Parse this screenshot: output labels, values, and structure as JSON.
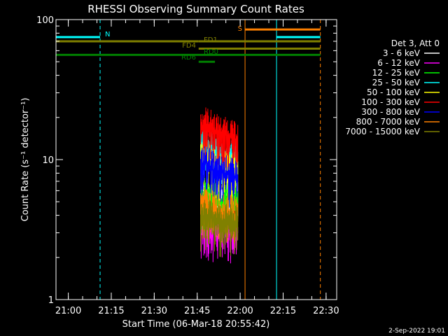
{
  "chart_data": {
    "type": "line",
    "title": "RHESSI Observing Summary Count Rates",
    "xlabel": "Start Time (06-Mar-18 20:55:42)",
    "ylabel": "Count Rate (s⁻¹ detector⁻¹)",
    "y_scale": "log",
    "ylim": [
      1,
      100
    ],
    "xlim_minutes": [
      0,
      98
    ],
    "x_ticks": [
      {
        "label": "21:00",
        "minutes": 4.3
      },
      {
        "label": "21:15",
        "minutes": 19.3
      },
      {
        "label": "21:30",
        "minutes": 34.3
      },
      {
        "label": "21:45",
        "minutes": 49.3
      },
      {
        "label": "22:00",
        "minutes": 64.3
      },
      {
        "label": "22:15",
        "minutes": 79.3
      },
      {
        "label": "22:30",
        "minutes": 94.3
      }
    ],
    "y_ticks": [
      {
        "label": "100",
        "value": 100
      },
      {
        "label": "10",
        "value": 10
      },
      {
        "label": "1",
        "value": 1
      }
    ],
    "legend_header": "Det 3, Att 0",
    "legend_placement": "right",
    "series": [
      {
        "name": "3 - 6 keV",
        "color": "#ffffff",
        "points": [
          [
            50.5,
            5.5
          ],
          [
            52,
            5.5
          ],
          [
            54,
            5.5
          ],
          [
            56,
            5.5
          ],
          [
            58,
            5.5
          ],
          [
            60,
            5.5
          ],
          [
            62,
            5.5
          ],
          [
            63.5,
            5.5
          ]
        ]
      },
      {
        "name": "6 - 12 keV",
        "color": "#ff00ff",
        "points": [
          [
            50.5,
            3.2
          ],
          [
            52,
            3.6
          ],
          [
            54,
            3.3
          ],
          [
            56,
            3.4
          ],
          [
            58,
            3.0
          ],
          [
            60,
            3.3
          ],
          [
            62,
            3.1
          ],
          [
            63.5,
            3.2
          ]
        ]
      },
      {
        "name": "12 - 25 keV",
        "color": "#00ff00",
        "points": [
          [
            50.5,
            5.0
          ],
          [
            52,
            5.8
          ],
          [
            54,
            5.4
          ],
          [
            56,
            5.6
          ],
          [
            58,
            5.0
          ],
          [
            60,
            5.4
          ],
          [
            62,
            5.2
          ],
          [
            63.5,
            5.3
          ]
        ]
      },
      {
        "name": "25 - 50 keV",
        "color": "#00ffff",
        "points": [
          [
            50.5,
            13
          ],
          [
            52,
            14
          ],
          [
            54,
            12
          ],
          [
            56,
            11
          ],
          [
            58,
            10
          ],
          [
            60,
            11
          ],
          [
            62,
            10
          ],
          [
            63.5,
            11
          ]
        ]
      },
      {
        "name": "50 - 100 keV",
        "color": "#ffff00",
        "points": [
          [
            50.5,
            10
          ],
          [
            52,
            11
          ],
          [
            54,
            10
          ],
          [
            56,
            9
          ],
          [
            58,
            8.5
          ],
          [
            60,
            9
          ],
          [
            62,
            8.5
          ],
          [
            63.5,
            9
          ]
        ]
      },
      {
        "name": "100 - 300 keV",
        "color": "#ff0000",
        "points": [
          [
            50.5,
            17
          ],
          [
            52,
            18
          ],
          [
            54,
            17
          ],
          [
            56,
            16
          ],
          [
            58,
            15
          ],
          [
            60,
            15
          ],
          [
            62,
            14
          ],
          [
            63.5,
            14
          ]
        ]
      },
      {
        "name": "300 - 800 keV",
        "color": "#0000ff",
        "points": [
          [
            50.5,
            9
          ],
          [
            52,
            9.5
          ],
          [
            54,
            9
          ],
          [
            56,
            8
          ],
          [
            58,
            8
          ],
          [
            60,
            8
          ],
          [
            62,
            7.5
          ],
          [
            63.5,
            7.5
          ]
        ]
      },
      {
        "name": "800 - 7000 keV",
        "color": "#ff8000",
        "points": [
          [
            50.5,
            4.5
          ],
          [
            52,
            4.8
          ],
          [
            54,
            4.5
          ],
          [
            56,
            4.4
          ],
          [
            58,
            4.2
          ],
          [
            60,
            4.3
          ],
          [
            62,
            4.1
          ],
          [
            63.5,
            4.1
          ]
        ]
      },
      {
        "name": "7000 - 15000 keV",
        "color": "#808000",
        "points": [
          [
            50.5,
            3.8
          ],
          [
            52,
            4.0
          ],
          [
            54,
            3.8
          ],
          [
            56,
            3.7
          ],
          [
            58,
            3.6
          ],
          [
            60,
            3.6
          ],
          [
            62,
            3.5
          ],
          [
            63.5,
            3.5
          ]
        ]
      }
    ],
    "vertical_lines": [
      {
        "minutes": 15.4,
        "color": "#00ffff",
        "style": "dashed"
      },
      {
        "minutes": 66.0,
        "color": "#ff8000",
        "style": "solid"
      },
      {
        "minutes": 77.0,
        "color": "#00ffff",
        "style": "solid"
      },
      {
        "minutes": 92.3,
        "color": "#ff8000",
        "style": "dashed"
      }
    ],
    "flag_bars": [
      {
        "label": "N",
        "color": "#00ffff",
        "value": 75,
        "start": 0,
        "end": 15.4
      },
      {
        "label": "N",
        "color": "#00ffff",
        "value": 75,
        "start": 77.0,
        "end": 92.3
      },
      {
        "label": "S",
        "color": "#ff8000",
        "value": 85,
        "start": 66.0,
        "end": 92.3
      },
      {
        "label": "FD1",
        "color": "#808000",
        "value": 70,
        "start": 0,
        "end": 49.8
      },
      {
        "label": "FD1",
        "color": "#808000",
        "value": 70,
        "start": 49.8,
        "end": 92.3
      },
      {
        "label": "FD4",
        "color": "#808000",
        "value": 62,
        "start": 49.8,
        "end": 92.3
      },
      {
        "label": "RD0",
        "color": "#008000",
        "value": 56,
        "start": 0,
        "end": 92.3
      },
      {
        "label": "RD6",
        "color": "#008000",
        "value": 50,
        "start": 49.8,
        "end": 55.5
      }
    ]
  },
  "footer": {
    "date": "2-Sep-2022 19:01"
  }
}
